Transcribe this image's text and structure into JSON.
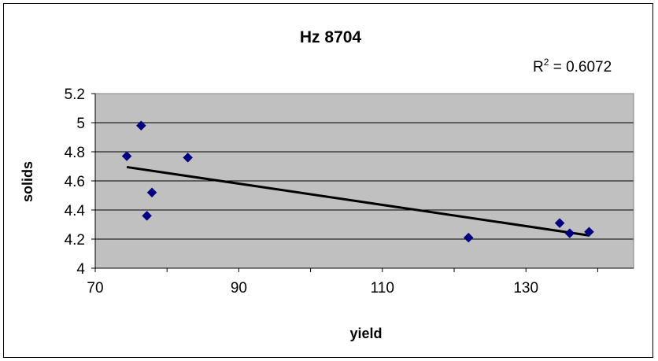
{
  "chart_data": {
    "type": "scatter",
    "title": "Hz 8704",
    "xlabel": "yield",
    "ylabel": "solids",
    "xlim": [
      70,
      145
    ],
    "ylim": [
      4,
      5.2
    ],
    "xticks": [
      70,
      90,
      110,
      130
    ],
    "yticks": [
      4,
      4.2,
      4.4,
      4.6,
      4.8,
      5,
      5.2
    ],
    "xtick_labels": [
      "70",
      "90",
      "110",
      "130"
    ],
    "ytick_labels": [
      "4",
      "4.2",
      "4.4",
      "4.6",
      "4.8",
      "5",
      "5.2"
    ],
    "grid": "horizontal",
    "plot_background": "#c0c0c0",
    "marker_color": "#000080",
    "marker": "diamond",
    "points": [
      {
        "x": 74.4,
        "y": 4.77
      },
      {
        "x": 76.4,
        "y": 4.98
      },
      {
        "x": 77.2,
        "y": 4.36
      },
      {
        "x": 77.9,
        "y": 4.52
      },
      {
        "x": 82.9,
        "y": 4.76
      },
      {
        "x": 122.0,
        "y": 4.21
      },
      {
        "x": 134.7,
        "y": 4.31
      },
      {
        "x": 136.1,
        "y": 4.24
      },
      {
        "x": 138.8,
        "y": 4.25
      }
    ],
    "trendline": {
      "type": "linear",
      "start": {
        "x": 74.4,
        "y": 4.695
      },
      "end": {
        "x": 138.8,
        "y": 4.225
      },
      "color": "#000000"
    },
    "r_squared": {
      "prefix": "R",
      "superscript": "2",
      "text": " = 0.6072"
    }
  }
}
